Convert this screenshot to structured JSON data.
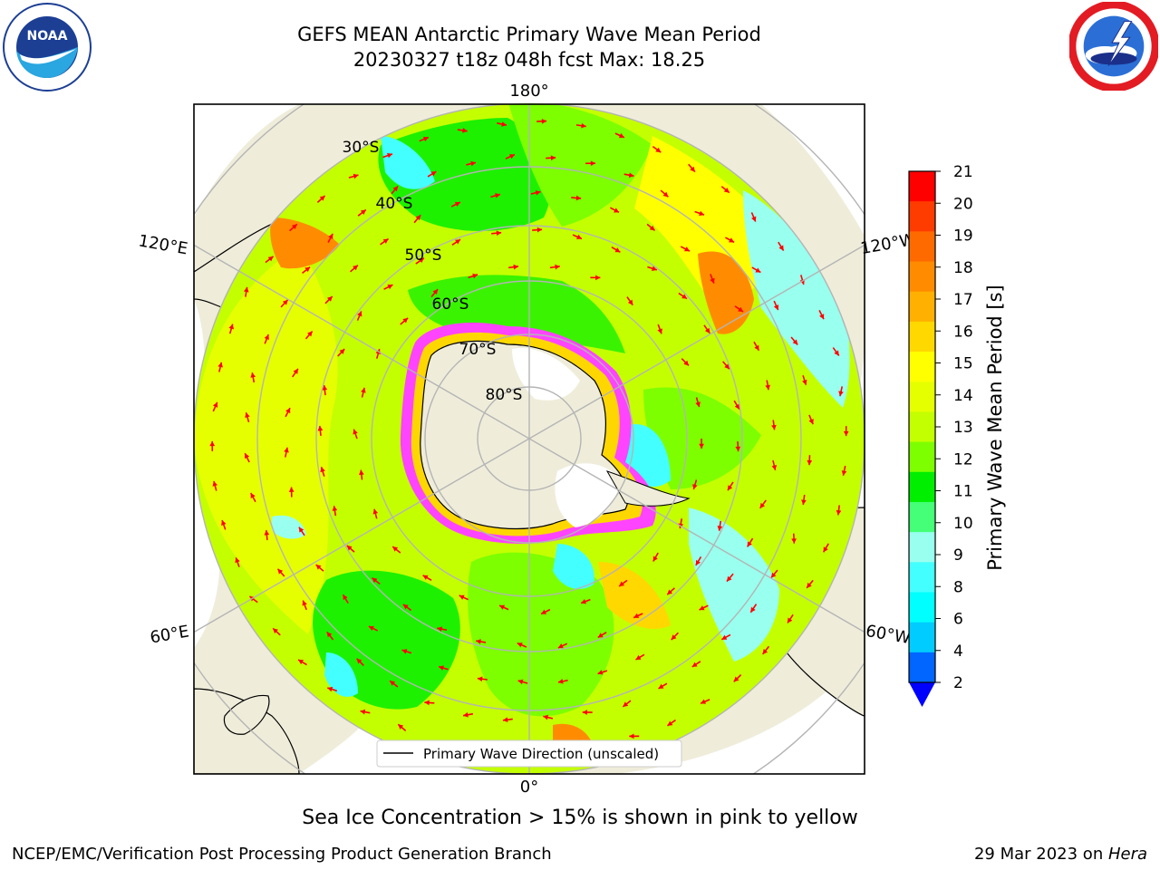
{
  "header": {
    "title_line1": "GEFS MEAN Antarctic Primary Wave Mean Period",
    "title_line2": "20230327 t18z 048h fcst   Max: 18.25"
  },
  "logos": {
    "left": "noaa-logo",
    "left_text": "NOAA",
    "right": "nws-logo"
  },
  "map": {
    "projection": "south-polar-stereographic",
    "longitude_labels": [
      "180°",
      "120°E",
      "120°W",
      "60°E",
      "60°W",
      "0°"
    ],
    "latitude_labels": [
      "30°S",
      "40°S",
      "50°S",
      "60°S",
      "70°S",
      "80°S"
    ],
    "legend_label": "Primary Wave Direction (unscaled)",
    "arrow_color": "#ff0000",
    "land_color": "#efedda",
    "ice_colors": [
      "#ff44ff",
      "#ffd700",
      "#ffffff"
    ]
  },
  "colorbar": {
    "label": "Primary Wave Mean Period [s]",
    "ticks": [
      "21",
      "20",
      "19",
      "18",
      "17",
      "16",
      "15",
      "14",
      "13",
      "12",
      "11",
      "10",
      "9",
      "8",
      "6",
      "4",
      "2"
    ],
    "colors": [
      "#ff0000",
      "#ff3c00",
      "#ff6a00",
      "#ff8c00",
      "#ffb000",
      "#ffd800",
      "#ffff00",
      "#e6ff00",
      "#c4ff00",
      "#7dff00",
      "#00ee00",
      "#44ff77",
      "#99ffee",
      "#44ffff",
      "#00ffff",
      "#00ccff",
      "#0066ff"
    ],
    "extend_color": "#0000ff"
  },
  "footer": {
    "subtitle": "Sea Ice Concentration > 15% is shown in pink to yellow",
    "credit": "NCEP/EMC/Verification Post Processing Product Generation Branch",
    "date": "29 Mar 2023 on ",
    "host": "Hera"
  }
}
